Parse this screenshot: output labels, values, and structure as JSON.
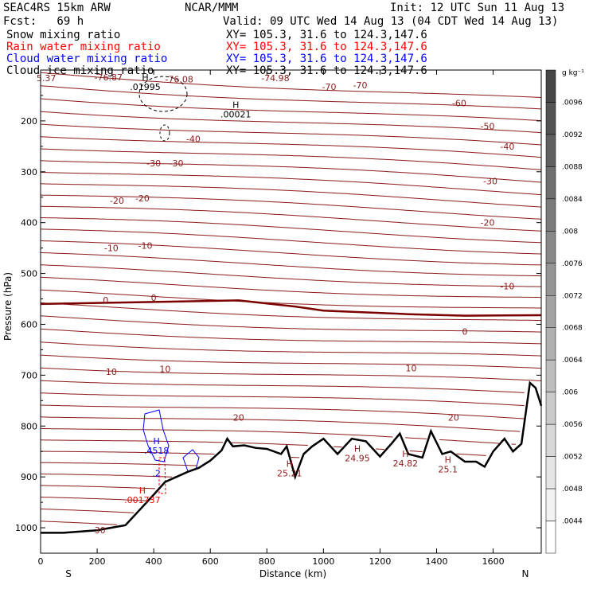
{
  "header": {
    "model": "SEAC4RS 15km ARW",
    "org": "NCAR/MMM",
    "init": "Init: 12 UTC Sun 11 Aug 13",
    "fcst": "Fcst:   69 h",
    "valid": "Valid: 09 UTC Wed 14 Aug 13 (04 CDT Wed 14 Aug 13)"
  },
  "fields": [
    {
      "name": "Snow mixing ratio",
      "xy": "XY= 105.3, 31.6 to 124.3,147.6",
      "color": "#000000"
    },
    {
      "name": "Rain water mixing ratio",
      "xy": "XY= 105.3, 31.6 to 124.3,147.6",
      "color": "#ff0000"
    },
    {
      "name": "Cloud water mixing ratio",
      "xy": "XY= 105.3, 31.6 to 124.3,147.6",
      "color": "#0000ff"
    },
    {
      "name": "Cloud ice mixing ratio",
      "xy": "XY= 105.3, 31.6 to 124.3,147.6",
      "color": "#000000"
    }
  ],
  "chart_data": {
    "type": "line",
    "xlabel": "Distance (km)",
    "ylabel": "Pressure (hPa)",
    "xlim": [
      0,
      1770
    ],
    "ylim": [
      100,
      1050
    ],
    "y_scale": "linear-inverted",
    "x_ticks": [
      0,
      200,
      400,
      600,
      800,
      1000,
      1200,
      1400,
      1600
    ],
    "y_ticks": [
      200,
      300,
      400,
      500,
      600,
      700,
      800,
      900,
      1000
    ],
    "x_end_labels": {
      "left": "S",
      "right": "N"
    },
    "colorbar": {
      "unit": "g kg⁻¹",
      "labels": [
        ".0096",
        ".0092",
        ".0088",
        ".0084",
        ".008",
        ".0076",
        ".0072",
        ".0068",
        ".0064",
        ".006",
        ".0056",
        ".0052",
        ".0048",
        ".0044"
      ]
    },
    "colors": {
      "temperature": "#8b1a1a",
      "freezing_level": "#7a0000",
      "terrain": "#000000",
      "cloud_water": "#0000ff",
      "rain_water": "#ff0000"
    },
    "terrain": {
      "x": [
        0,
        80,
        200,
        300,
        350,
        400,
        440,
        480,
        520,
        560,
        600,
        640,
        660,
        680,
        720,
        760,
        800,
        850,
        870,
        900,
        930,
        960,
        1000,
        1050,
        1100,
        1150,
        1200,
        1240,
        1270,
        1300,
        1350,
        1380,
        1420,
        1450,
        1500,
        1540,
        1570,
        1600,
        1640,
        1670,
        1700,
        1730,
        1750,
        1770
      ],
      "p": [
        1010,
        1010,
        1005,
        995,
        965,
        935,
        910,
        900,
        890,
        882,
        868,
        848,
        825,
        840,
        838,
        843,
        845,
        855,
        840,
        900,
        855,
        840,
        825,
        855,
        825,
        830,
        860,
        835,
        815,
        855,
        862,
        810,
        855,
        850,
        870,
        870,
        880,
        850,
        825,
        850,
        835,
        715,
        725,
        760
      ]
    },
    "isotherm_labels": [
      {
        "x": 20,
        "p": 116,
        "text": "5.37"
      },
      {
        "x": 240,
        "p": 114,
        "text": "-76.87"
      },
      {
        "x": 490,
        "p": 118,
        "text": "-76.08"
      },
      {
        "x": 830,
        "p": 116,
        "text": "-74.98"
      },
      {
        "x": 1020,
        "p": 133,
        "text": "-70"
      },
      {
        "x": 1130,
        "p": 130,
        "text": "-70"
      },
      {
        "x": 1480,
        "p": 165,
        "text": "-60"
      },
      {
        "x": 1580,
        "p": 210,
        "text": "-50"
      },
      {
        "x": 1650,
        "p": 250,
        "text": "-40"
      },
      {
        "x": 540,
        "p": 235,
        "text": "-40"
      },
      {
        "x": 400,
        "p": 283,
        "text": "-30"
      },
      {
        "x": 480,
        "p": 283,
        "text": "-30"
      },
      {
        "x": 1590,
        "p": 318,
        "text": "-30"
      },
      {
        "x": 270,
        "p": 357,
        "text": "-20"
      },
      {
        "x": 360,
        "p": 352,
        "text": "-20"
      },
      {
        "x": 1580,
        "p": 400,
        "text": "-20"
      },
      {
        "x": 250,
        "p": 450,
        "text": "-10"
      },
      {
        "x": 370,
        "p": 445,
        "text": "-10"
      },
      {
        "x": 1650,
        "p": 525,
        "text": "-10"
      },
      {
        "x": 230,
        "p": 552,
        "text": "0"
      },
      {
        "x": 400,
        "p": 548,
        "text": "0"
      },
      {
        "x": 1500,
        "p": 614,
        "text": "0"
      },
      {
        "x": 250,
        "p": 693,
        "text": "10"
      },
      {
        "x": 440,
        "p": 688,
        "text": "10"
      },
      {
        "x": 1310,
        "p": 686,
        "text": "10"
      },
      {
        "x": 700,
        "p": 783,
        "text": "20"
      },
      {
        "x": 1460,
        "p": 783,
        "text": "20"
      },
      {
        "x": 210,
        "p": 1005,
        "text": "30"
      }
    ],
    "maxima": [
      {
        "x": 370,
        "p": 133,
        "h": "H",
        "value": ".01995",
        "color": "#000000"
      },
      {
        "x": 690,
        "p": 187,
        "h": "H",
        "value": ".00021",
        "color": "#000000"
      },
      {
        "x": 410,
        "p": 848,
        "h": "H",
        "value": ".4518",
        "color": "#0000ff"
      },
      {
        "x": 410,
        "p": 893,
        "h": "",
        "value": ".2",
        "color": "#0000ff"
      },
      {
        "x": 360,
        "p": 945,
        "h": "H",
        "value": ".001737",
        "color": "#ff0000"
      },
      {
        "x": 880,
        "p": 893,
        "h": "H",
        "value": "25.21",
        "color": "#8b1a1a"
      },
      {
        "x": 1120,
        "p": 863,
        "h": "H",
        "value": "24.95",
        "color": "#8b1a1a"
      },
      {
        "x": 1290,
        "p": 873,
        "h": "H",
        "value": "24.82",
        "color": "#8b1a1a"
      },
      {
        "x": 1440,
        "p": 885,
        "h": "H",
        "value": "25.1",
        "color": "#8b1a1a"
      }
    ]
  }
}
